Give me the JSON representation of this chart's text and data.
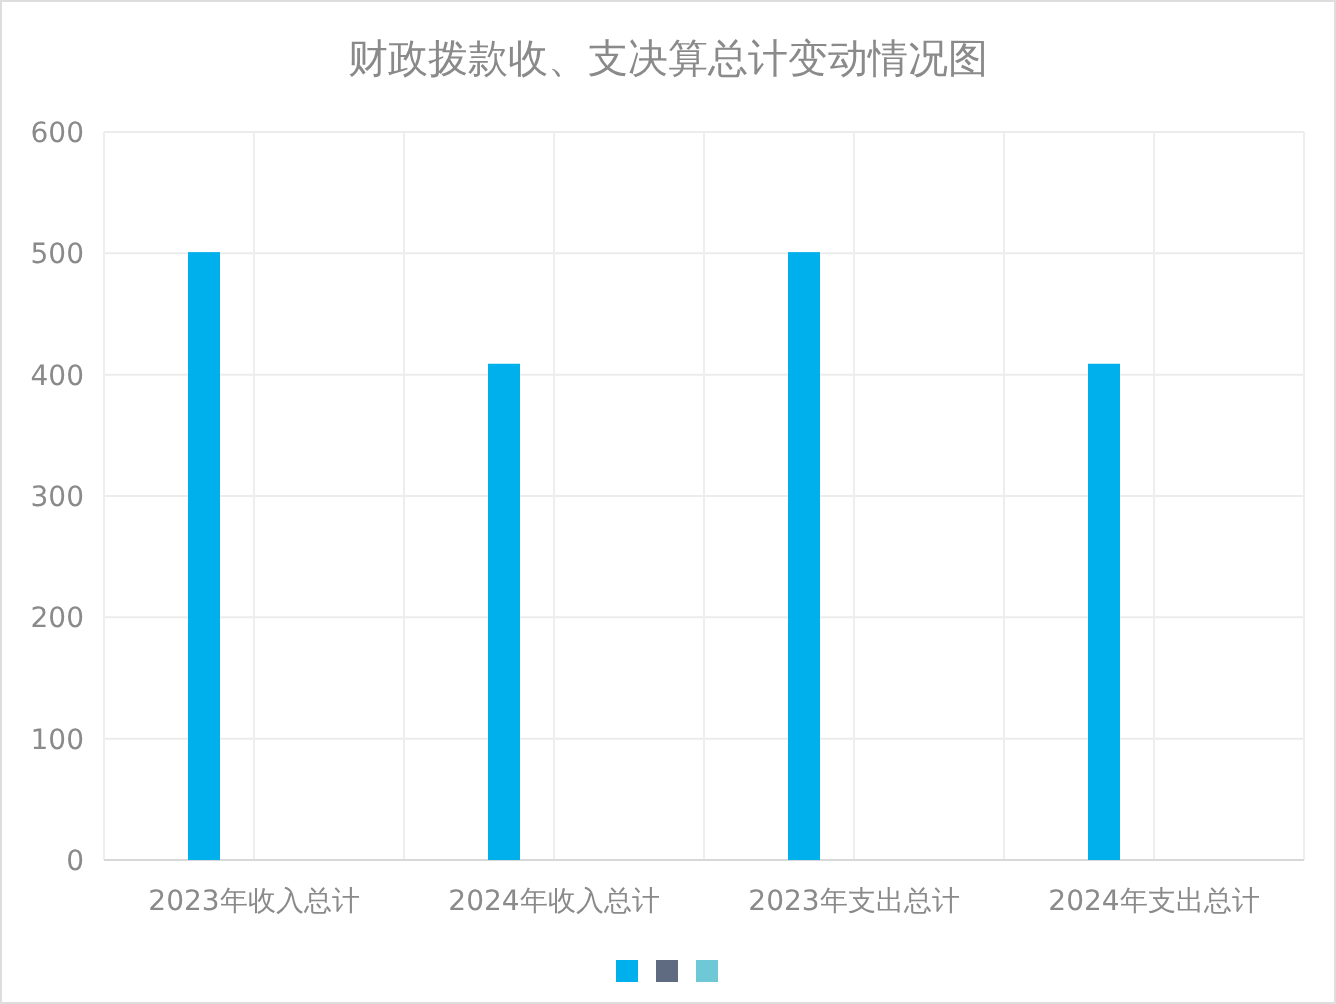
{
  "chart_data": {
    "type": "bar",
    "title": "财政拨款收、支决算总计变动情况图",
    "categories": [
      "2023年收入总计",
      "2024年收入总计",
      "2023年支出总计",
      "2024年支出总计"
    ],
    "series": [
      {
        "color": "#00b0ec",
        "values": [
          501,
          409,
          501,
          409
        ]
      }
    ],
    "ylim": [
      0,
      600
    ],
    "yticks": [
      0,
      100,
      200,
      300,
      400,
      500,
      600
    ],
    "grid": true
  }
}
